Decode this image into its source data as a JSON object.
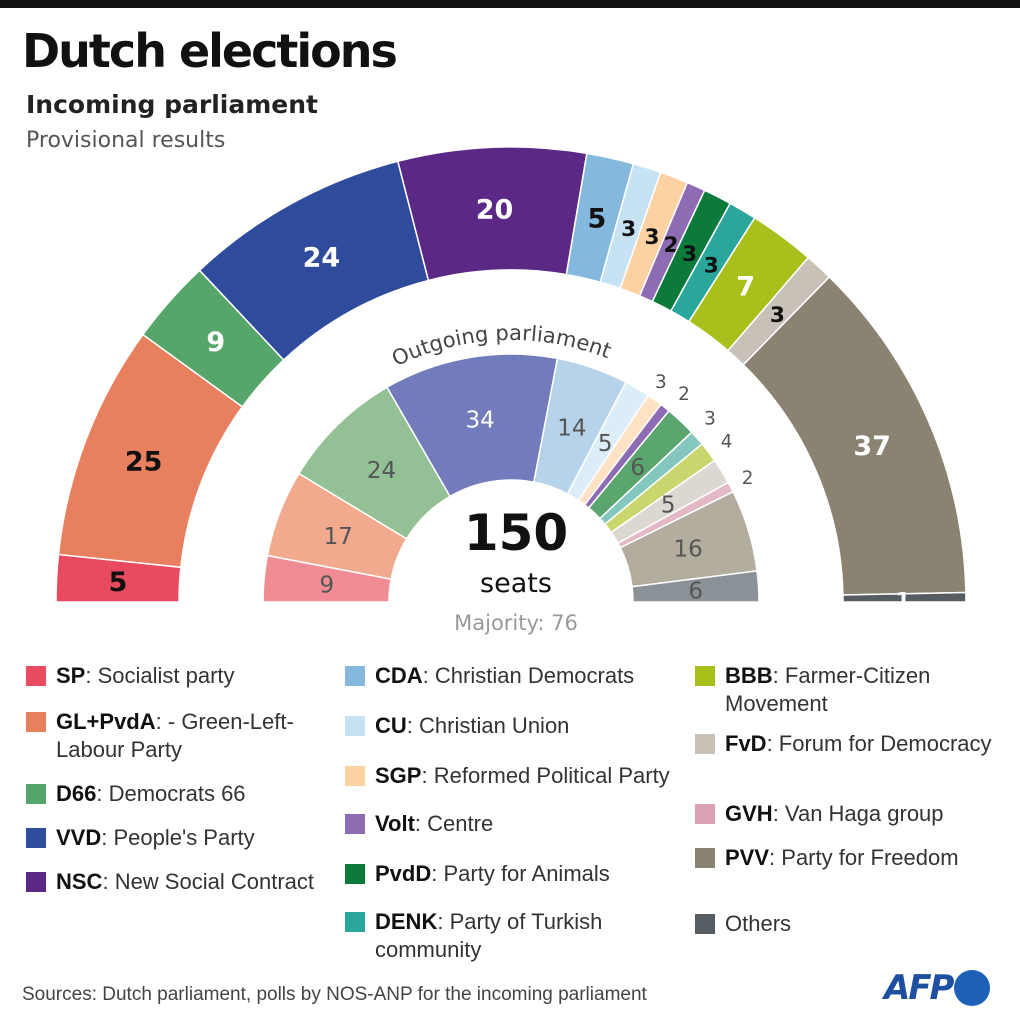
{
  "header": {
    "title": "Dutch elections",
    "subtitle": "Incoming parliament",
    "note": "Provisional results"
  },
  "center": {
    "total": "150",
    "total_label": "seats",
    "majority": "Majority: 76",
    "inner_title": "Outgoing parliament"
  },
  "source": "Sources: Dutch parliament, polls by NOS-ANP for the incoming parliament",
  "logo": "AFP",
  "chart_data": {
    "type": "parliament-semicircle",
    "total_seats": 150,
    "parties": [
      {
        "code": "SP",
        "name": "Socialist party",
        "color": "#e84a5f",
        "inner_color": "#f08c93",
        "incoming": 5,
        "outgoing": 9
      },
      {
        "code": "GL+PvdA",
        "name": "- Green-Left-Labour Party",
        "color": "#e8805f",
        "inner_color": "#f1aa8e",
        "incoming": 25,
        "outgoing": 17
      },
      {
        "code": "D66",
        "name": "Democrats 66",
        "color": "#56a66b",
        "inner_color": "#93c095",
        "incoming": 9,
        "outgoing": 24
      },
      {
        "code": "VVD",
        "name": "People's Party",
        "color": "#2f4b9c",
        "inner_color": "#727cbc",
        "incoming": 24,
        "outgoing": 34
      },
      {
        "code": "NSC",
        "name": "New Social Contract",
        "color": "#5b2886",
        "inner_color": "#9b7bb8",
        "incoming": 20,
        "outgoing": 0
      },
      {
        "code": "CDA",
        "name": "Christian Democrats",
        "color": "#85b8dd",
        "inner_color": "#b6d3ea",
        "incoming": 5,
        "outgoing": 14
      },
      {
        "code": "CU",
        "name": "Christian Union",
        "color": "#c6e2f3",
        "inner_color": "#dcedf8",
        "incoming": 3,
        "outgoing": 5
      },
      {
        "code": "SGP",
        "name": "Reformed Political Party",
        "color": "#fdd2a3",
        "inner_color": "#fde2c3",
        "incoming": 3,
        "outgoing": 3
      },
      {
        "code": "Volt",
        "name": "Centre",
        "color": "#8e6cb3",
        "inner_color": "#8e6cb3",
        "incoming": 2,
        "outgoing": 2
      },
      {
        "code": "PvdD",
        "name": "Party for Animals",
        "color": "#0b7a3b",
        "inner_color": "#5aa66e",
        "incoming": 3,
        "outgoing": 6
      },
      {
        "code": "DENK",
        "name": "Party of Turkish community",
        "color": "#2ba69b",
        "inner_color": "#84c7bf",
        "incoming": 3,
        "outgoing": 3
      },
      {
        "code": "BBB",
        "name": "Farmer-Citizen Movement",
        "color": "#a9bf1b",
        "inner_color": "#cad66d",
        "incoming": 7,
        "outgoing": 4
      },
      {
        "code": "FvD",
        "name": "Forum for Democracy",
        "color": "#c8c1b7",
        "inner_color": "#dcd7d0",
        "incoming": 3,
        "outgoing": 5
      },
      {
        "code": "GVH",
        "name": "Van Haga group",
        "color": "#d9a3b5",
        "inner_color": "#e3b9c6",
        "incoming": 0,
        "outgoing": 2
      },
      {
        "code": "PVV",
        "name": "Party for Freedom",
        "color": "#8a8372",
        "inner_color": "#b3ada0",
        "incoming": 37,
        "outgoing": 16
      },
      {
        "code": "Others",
        "name": "",
        "color": "#565d62",
        "inner_color": "#8a9297",
        "incoming": 1,
        "outgoing": 6
      }
    ],
    "outer_label_colors": {
      "SP": "#111",
      "GL+PvdA": "#111",
      "D66": "#fff",
      "VVD": "#fff",
      "NSC": "#fff",
      "BBB": "#fff",
      "PVV": "#fff",
      "Others": "#fff"
    },
    "inner_label_colors": {
      "VVD": "#fff"
    }
  }
}
